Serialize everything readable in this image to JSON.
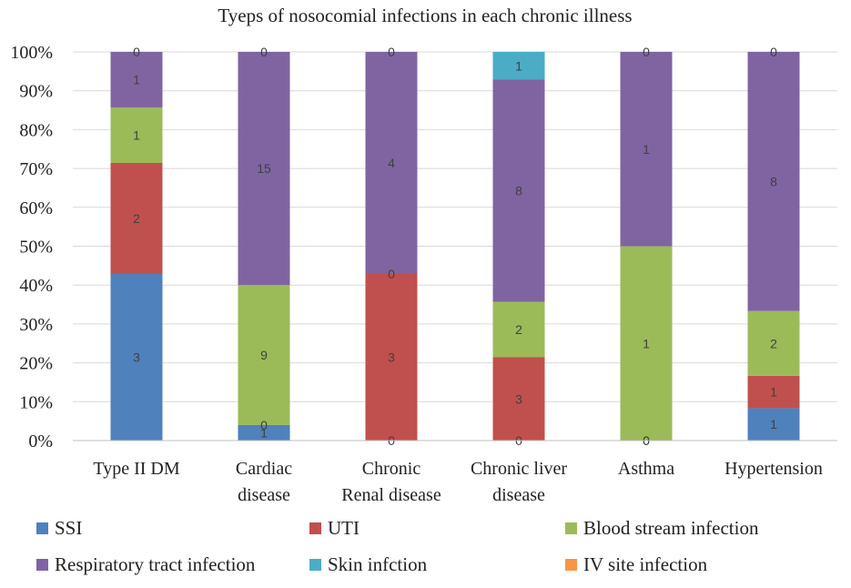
{
  "chart_data": {
    "type": "bar",
    "stacked": true,
    "normalized": true,
    "title": "Tyeps of nosocomial infections in each chronic illness",
    "categories": [
      [
        "Type II DM"
      ],
      [
        "Cardiac",
        "disease"
      ],
      [
        "Chronic",
        "Renal disease"
      ],
      [
        "Chronic liver",
        "disease"
      ],
      [
        "Asthma"
      ],
      [
        "Hypertension"
      ]
    ],
    "y_ticks": [
      "0%",
      "10%",
      "20%",
      "30%",
      "40%",
      "50%",
      "60%",
      "70%",
      "80%",
      "90%",
      "100%"
    ],
    "ylim": [
      0,
      100
    ],
    "xlabel": "",
    "ylabel": "",
    "legend_position": "bottom",
    "series": [
      {
        "name": "SSI",
        "color": "#4F81BD",
        "values": [
          3,
          1,
          0,
          0,
          0,
          1
        ]
      },
      {
        "name": "UTI",
        "color": "#C0504D",
        "values": [
          2,
          0,
          3,
          3,
          0,
          1
        ]
      },
      {
        "name": "Blood stream infection",
        "color": "#9BBB59",
        "values": [
          1,
          9,
          0,
          2,
          1,
          2
        ]
      },
      {
        "name": "Respiratory tract infection",
        "color": "#8064A2",
        "values": [
          1,
          15,
          4,
          8,
          1,
          8
        ]
      },
      {
        "name": "Skin infction",
        "color": "#4BACC6",
        "values": [
          0,
          0,
          0,
          1,
          0,
          0
        ]
      },
      {
        "name": "IV site infection",
        "color": "#F79646",
        "values": [
          0,
          0,
          0,
          0,
          0,
          0
        ]
      }
    ]
  }
}
